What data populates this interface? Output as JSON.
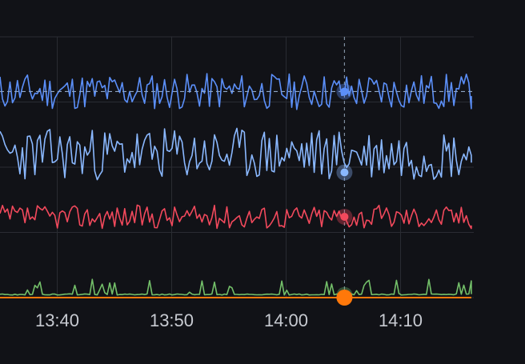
{
  "colors": {
    "background": "#111217",
    "grid": "#2a2c33",
    "tick_label": "#c7cad1",
    "hover_line": "#7f8ea0",
    "threshold_line": "#8fa6c6"
  },
  "chart_data": {
    "type": "line",
    "title": "",
    "xlabel": "",
    "ylabel": "",
    "x_ticks": [
      "13:40",
      "13:50",
      "14:00",
      "14:10"
    ],
    "x_tick_minutes": [
      40,
      50,
      60,
      70
    ],
    "x_range_minutes": [
      35,
      76.4
    ],
    "grid": true,
    "hover_time_minutes": 65.1,
    "threshold": {
      "value": 0.79,
      "style": "dashed"
    },
    "series": [
      {
        "id": "s1",
        "color": "#5b8ff9",
        "base": 0.79,
        "amp": 0.07,
        "seed": 11,
        "hover_value": 0.79
      },
      {
        "id": "s2",
        "color": "#8ab8ff",
        "base": 0.55,
        "amp": 0.1,
        "seed": 23,
        "hover_value": 0.48
      },
      {
        "id": "s3",
        "color": "#f2495c",
        "base": 0.31,
        "amp": 0.045,
        "seed": 37,
        "hover_value": 0.31
      },
      {
        "id": "s4",
        "color": "#73bf69",
        "base": 0.01,
        "amp": 0.04,
        "seed": 53,
        "spiky": true,
        "hover_value": 0.01
      },
      {
        "id": "s5",
        "color": "#ff780a",
        "base": 0.0,
        "amp": 0.0,
        "seed": 0,
        "flat": true,
        "hover_value": 0.0
      }
    ]
  }
}
